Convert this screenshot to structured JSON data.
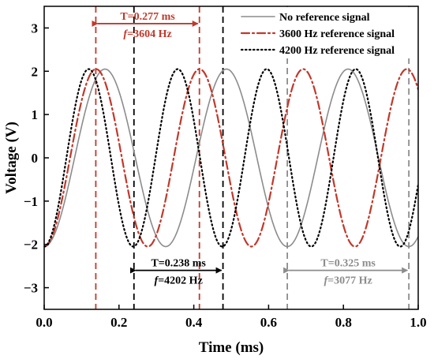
{
  "chart_data": {
    "type": "line",
    "title": "",
    "xlabel": "Time (ms)",
    "ylabel": "Voltage (V)",
    "xlim": [
      0.0,
      1.0
    ],
    "ylim": [
      -3.5,
      3.5
    ],
    "x_ticks": [
      0.0,
      0.2,
      0.4,
      0.6,
      0.8,
      1.0
    ],
    "x_tick_labels": [
      "0.0",
      "0.2",
      "0.4",
      "0.6",
      "0.8",
      "1.0"
    ],
    "y_ticks": [
      -3,
      -2,
      -1,
      0,
      1,
      2,
      3
    ],
    "y_tick_labels": [
      "−3",
      "−2",
      "−1",
      "0",
      "1",
      "2",
      "3"
    ],
    "grid": false,
    "legend_position": "top-right",
    "series": [
      {
        "name": "No reference signal",
        "color": "#8c8c8c",
        "style": "solid",
        "amplitude": 2.05,
        "period_ms": 0.325,
        "first_trough_ms": 0.0
      },
      {
        "name": "3600 Hz reference signal",
        "color": "#c0392b",
        "style": "dashdot",
        "amplitude": 2.05,
        "period_ms": 0.277,
        "first_trough_ms": 0.0
      },
      {
        "name": "4200 Hz reference signal",
        "color": "#000000",
        "style": "dotted",
        "amplitude": 2.05,
        "period_ms": 0.238,
        "first_trough_ms": 0.0
      }
    ],
    "annotations": [
      {
        "period_label": "T=0.277 ms",
        "freq_prefix": "f",
        "freq_value": "=3604 Hz",
        "color": "#c0392b",
        "x_start": 0.138,
        "x_end": 0.415,
        "arrow_y": 3.1
      },
      {
        "period_label": "T=0.238 ms",
        "freq_prefix": "f",
        "freq_value": "=4202 Hz",
        "color": "#000000",
        "x_start": 0.24,
        "x_end": 0.478,
        "arrow_y": -2.6
      },
      {
        "period_label": "T=0.325 ms",
        "freq_prefix": "f",
        "freq_value": "=3077 Hz",
        "color": "#8c8c8c",
        "x_start": 0.65,
        "x_end": 0.975,
        "arrow_y": -2.6
      }
    ]
  }
}
